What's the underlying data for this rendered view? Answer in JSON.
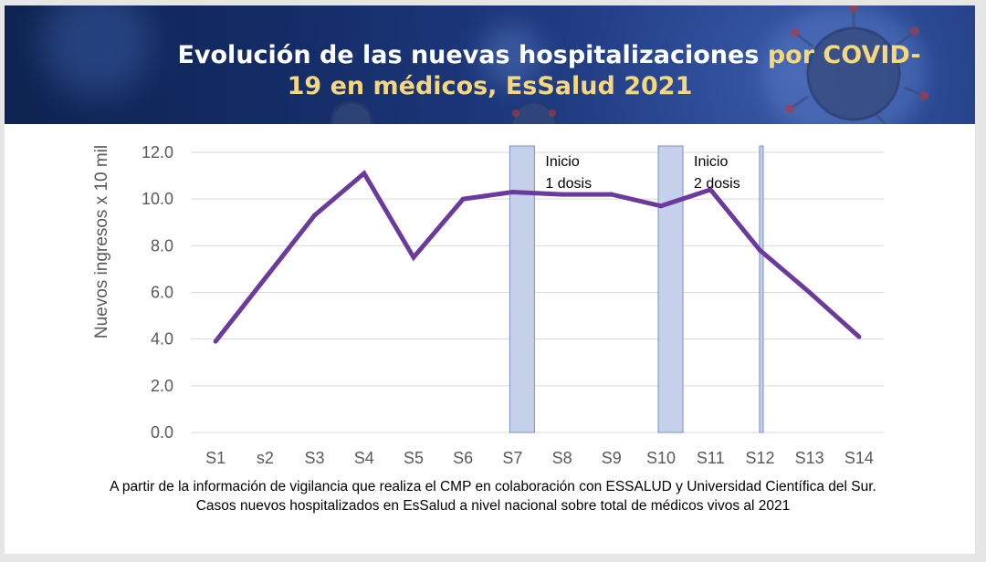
{
  "title": {
    "line1_white": "Evolución de las nuevas hospitalizaciones",
    "line1_highlight": "por COVID-",
    "line2_highlight": "19 en médicos, EsSalud 2021"
  },
  "caption": {
    "line1": "A partir de la información de vigilancia que realiza el CMP en colaboración con ESSALUD y Universidad Científica del Sur.",
    "line2": "Casos nuevos hospitalizados en EsSalud a nivel nacional sobre total de médicos vivos al 2021"
  },
  "colors": {
    "line": "#6a3b9c",
    "band_fill": "#c5d0ea",
    "band_stroke": "#7a8fc4",
    "grid": "#d9d9d9",
    "tick_text": "#595959"
  },
  "chart_data": {
    "type": "line",
    "title": "Evolución de las nuevas hospitalizaciones por COVID-19 en médicos, EsSalud 2021",
    "xlabel": "",
    "ylabel": "Nuevos ingresos x 10 mil",
    "ylim": [
      0,
      12
    ],
    "yticks": [
      "0.0",
      "2.0",
      "4.0",
      "6.0",
      "8.0",
      "10.0",
      "12.0"
    ],
    "grid": true,
    "categories": [
      "S1",
      "s2",
      "S3",
      "S4",
      "S5",
      "S6",
      "S7",
      "S8",
      "S9",
      "S10",
      "S11",
      "S12",
      "S13",
      "S14"
    ],
    "series": [
      {
        "name": "Nuevos ingresos x 10 mil",
        "values": [
          3.9,
          6.6,
          9.3,
          11.1,
          7.5,
          10.0,
          10.3,
          10.2,
          10.2,
          9.7,
          10.4,
          7.8,
          6.0,
          4.1
        ]
      }
    ],
    "bands": [
      {
        "at": "S7",
        "label_line1": "Inicio",
        "label_line2": "1 dosis"
      },
      {
        "at": "S10",
        "label_line1": "Inicio",
        "label_line2": "2 dosis"
      },
      {
        "at": "S12"
      }
    ]
  }
}
